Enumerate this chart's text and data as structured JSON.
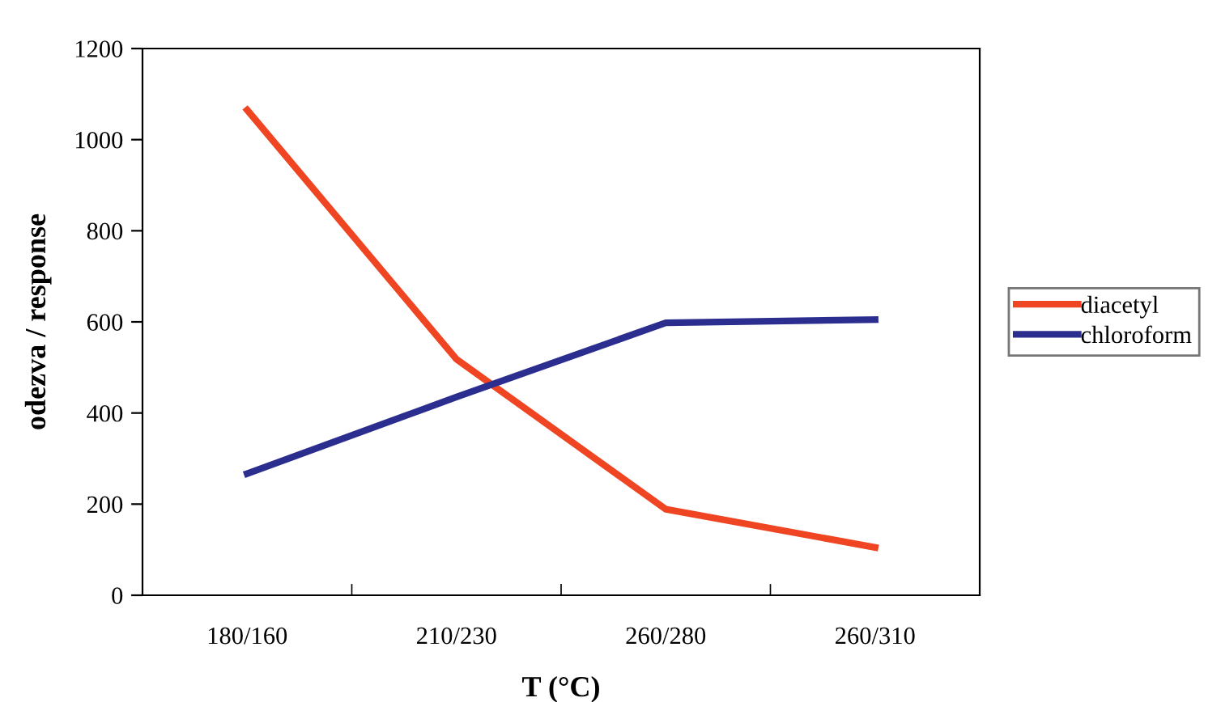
{
  "chart_data": {
    "type": "line",
    "xlabel": "T (°C)",
    "ylabel": "odezva / response",
    "categories": [
      "180/160",
      "210/230",
      "260/280",
      "260/310"
    ],
    "series": [
      {
        "name": "diacetyl",
        "color": "#f04523",
        "values": [
          1065,
          518,
          189,
          105
        ]
      },
      {
        "name": "chloroform",
        "color": "#2b2d8f",
        "values": [
          267,
          435,
          598,
          605
        ]
      }
    ],
    "ylim": [
      0,
      1200
    ],
    "yticks": [
      0,
      200,
      400,
      600,
      800,
      1000,
      1200
    ],
    "grid": false,
    "legend": "right",
    "marker": "none",
    "line_style": "solid"
  }
}
